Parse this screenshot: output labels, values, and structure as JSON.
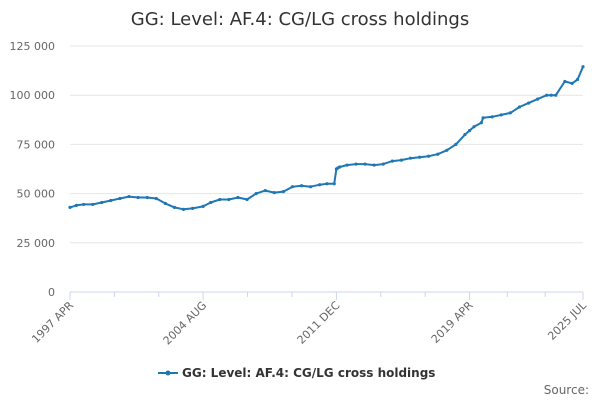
{
  "chart_data": {
    "type": "line",
    "title": "GG: Level: AF.4: CG/LG cross holdings",
    "xlabel": "",
    "ylabel": "",
    "ylim": [
      0,
      125000
    ],
    "yticks": [
      "0",
      "25 000",
      "50 000",
      "75 000",
      "100 000",
      "125 000"
    ],
    "ytick_values": [
      0,
      25000,
      50000,
      75000,
      100000,
      125000
    ],
    "xlim": [
      1997.25,
      2025.5
    ],
    "xticks": [
      {
        "label": "1997 APR",
        "year": 1997.25
      },
      {
        "label": "2004 AUG",
        "year": 2004.58
      },
      {
        "label": "2011 DEC",
        "year": 2011.92
      },
      {
        "label": "2019 APR",
        "year": 2019.25
      },
      {
        "label": "2025 JUL",
        "year": 2025.5
      }
    ],
    "legend_position": "bottom",
    "grid": "horizontal",
    "color": "#1f77b4",
    "series": [
      {
        "name": "GG: Level: AF.4: CG/LG cross holdings",
        "x": [
          1997.25,
          1997.6,
          1998.0,
          1998.5,
          1999.0,
          1999.5,
          2000.0,
          2000.5,
          2001.0,
          2001.5,
          2002.0,
          2002.5,
          2003.0,
          2003.5,
          2004.0,
          2004.58,
          2005.0,
          2005.5,
          2006.0,
          2006.5,
          2007.0,
          2007.5,
          2008.0,
          2008.5,
          2009.0,
          2009.5,
          2010.0,
          2010.5,
          2011.0,
          2011.4,
          2011.8,
          2011.92,
          2012.0,
          2012.1,
          2012.5,
          2013.0,
          2013.5,
          2014.0,
          2014.5,
          2015.0,
          2015.5,
          2016.0,
          2016.5,
          2017.0,
          2017.5,
          2018.0,
          2018.5,
          2019.0,
          2019.25,
          2019.5,
          2019.9,
          2020.0,
          2020.5,
          2021.0,
          2021.5,
          2022.0,
          2022.5,
          2023.0,
          2023.5,
          2023.75,
          2024.0,
          2024.5,
          2024.9,
          2025.2,
          2025.5
        ],
        "values": [
          43000,
          44000,
          44500,
          44500,
          45500,
          46500,
          47500,
          48500,
          48000,
          48000,
          47500,
          45000,
          43000,
          42000,
          42500,
          43500,
          45500,
          47000,
          47000,
          48000,
          47000,
          50000,
          51500,
          50500,
          51000,
          53500,
          54000,
          53500,
          54500,
          55000,
          55000,
          62500,
          63000,
          63500,
          64500,
          65000,
          65000,
          64500,
          65000,
          66500,
          67000,
          68000,
          68500,
          69000,
          70000,
          72000,
          75000,
          80000,
          82000,
          84000,
          86000,
          88500,
          89000,
          90000,
          91000,
          94000,
          96000,
          98000,
          100000,
          100000,
          100000,
          107000,
          106000,
          108000,
          114500
        ]
      }
    ]
  },
  "legend": {
    "label": "GG: Level: AF.4: CG/LG cross holdings"
  },
  "source": {
    "label": "Source:"
  }
}
